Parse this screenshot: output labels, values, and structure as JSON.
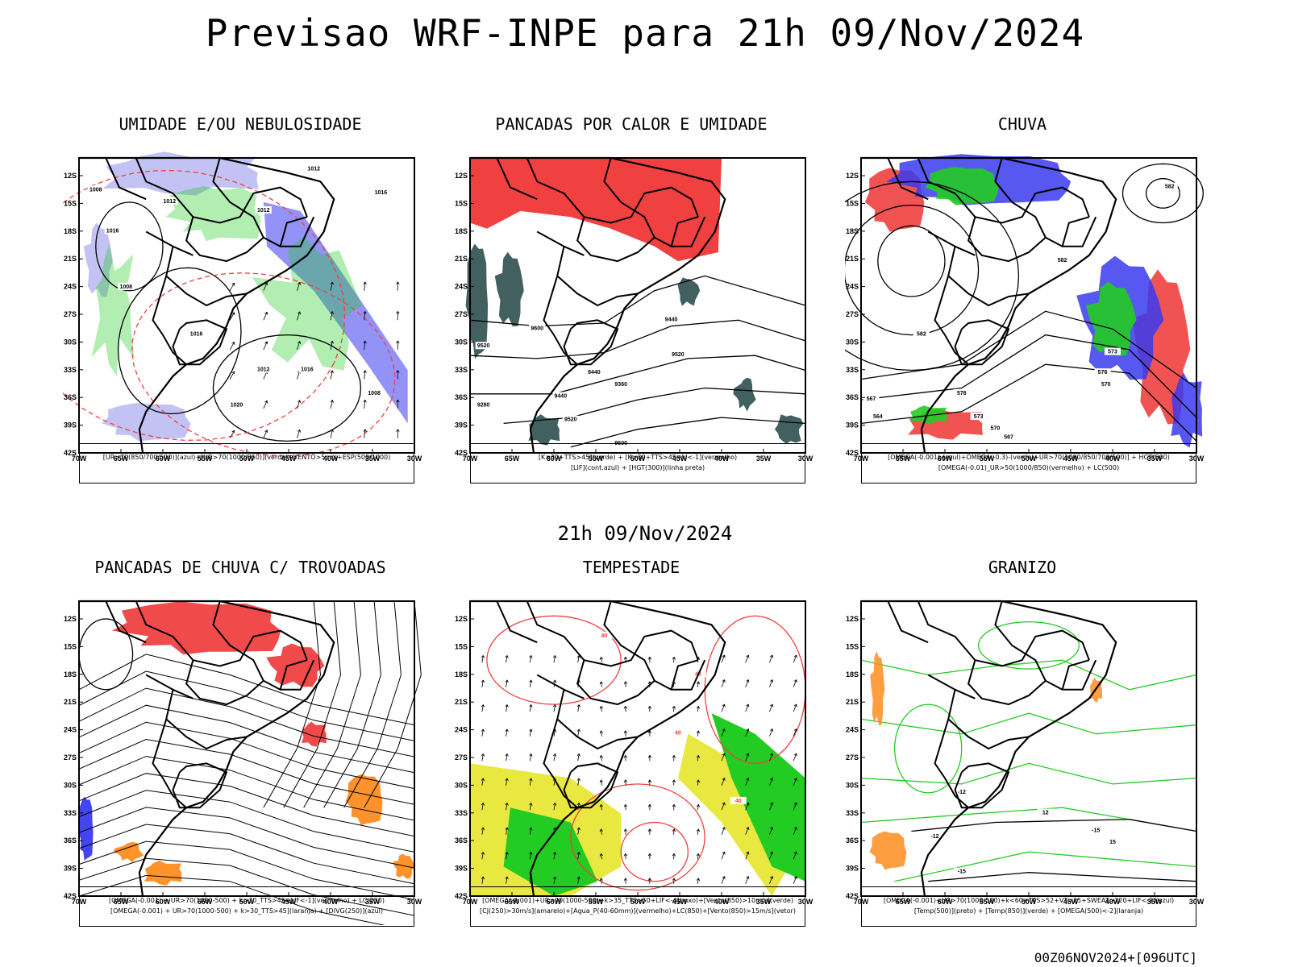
{
  "header": {
    "title": "Previsao WRF-INPE  para 21h 09/Nov/2024"
  },
  "middle": {
    "subtitle": "21h 09/Nov/2024"
  },
  "footer": {
    "run": "00Z06NOV2024+[096UTC]"
  },
  "axes": {
    "lon_ticks": [
      "70W",
      "65W",
      "60W",
      "55W",
      "50W",
      "45W",
      "40W",
      "35W",
      "30W"
    ],
    "lat_ticks": [
      "12S",
      "15S",
      "18S",
      "21S",
      "24S",
      "27S",
      "30S",
      "33S",
      "36S",
      "39S",
      "42S"
    ]
  },
  "colors": {
    "red": "#f04040",
    "blue": "#3a3af0",
    "green": "#22cc22",
    "yellow": "#e8e840",
    "orange": "#ff8c20",
    "dark": "#2f4f4f",
    "lightblue": "#a8a8f0"
  },
  "panels": [
    {
      "id": "umidade",
      "title": "UMIDADE E/OU NEBULOSIDADE",
      "legend": [
        "[UR>70(850/700/500)](azul)+[UR>70(1000/850)](verde)+VENTO>5m/s+ESP(500/1000)"
      ],
      "contour_labels": [
        "1012",
        "1008",
        "1012",
        "1012",
        "1016",
        "1008",
        "1016",
        "1012",
        "1016",
        "1020",
        "1016",
        "1008"
      ]
    },
    {
      "id": "pancadas-calor",
      "title": "PANCADAS POR CALOR E UMIDADE",
      "legend": [
        "[K>30+TTS>45](verde) + [K>30+TTS>45+LI<-1](vermelho)",
        "[LIF](cont.azul) + [HGT(300)](linha preta)"
      ],
      "contour_labels": [
        "9600",
        "9520",
        "9440",
        "9360",
        "9280",
        "9520",
        "9600",
        "9440",
        "9520",
        "9440"
      ]
    },
    {
      "id": "chuva",
      "title": "CHUVA",
      "legend": [
        "[OMEGA(-0.001)-(azul)+OMEGA(-0.3)-(verde)+UR>70(1000/850/700/500)] + HGT(500)",
        "[OMEGA(-0.01)_UR>50(1000/850)(vermelho) + LC(500)"
      ],
      "contour_labels": [
        "582",
        "582",
        "576",
        "573",
        "570",
        "567",
        "576",
        "573",
        "570",
        "567",
        "564",
        "582"
      ]
    },
    {
      "id": "pancadas-trovoadas",
      "title": "PANCADAS DE CHUVA C/ TROVOADAS",
      "legend": [
        "[OMEGA(-0.001) + UR>70(1000-500) + k>30_TTS>45+LIF<-1](vermelho) + LC(250)",
        "[OMEGA(-0.001) + UR>70(1000-500) + k>30_TTS>45](laranja) + [DIVG(250)](azul)"
      ],
      "contour_labels": []
    },
    {
      "id": "tempestade",
      "title": "TEMPESTADE",
      "legend": [
        "[OMEGA(-0.001)+UR>70(1000-500)+k>35_TTS>50+LIF<-4](roxo)+[Vento(850)>10m/s](verde)",
        "[CJ(250)>30m/s](amarelo)+[Agua_P(40-60mm)](vermelho)+LC(850)+[Vento(850)>15m/s](vetor)"
      ],
      "contour_labels": [
        "40",
        "40",
        "40",
        "40"
      ]
    },
    {
      "id": "granizo",
      "title": "GRANIZO",
      "legend": [
        "[OMEGA(-0.001)+UR>70(1000-500)+k<60+TTS>52+VT>25+SWEAT>220+LIF<-2](azul)",
        "[Temp(500)](preto) + [Temp(850)](verde) + [OMEGA(500)<-2](laranja)"
      ],
      "contour_labels": [
        "-12",
        "-15",
        "-15",
        "-12",
        "12",
        "15"
      ]
    }
  ]
}
